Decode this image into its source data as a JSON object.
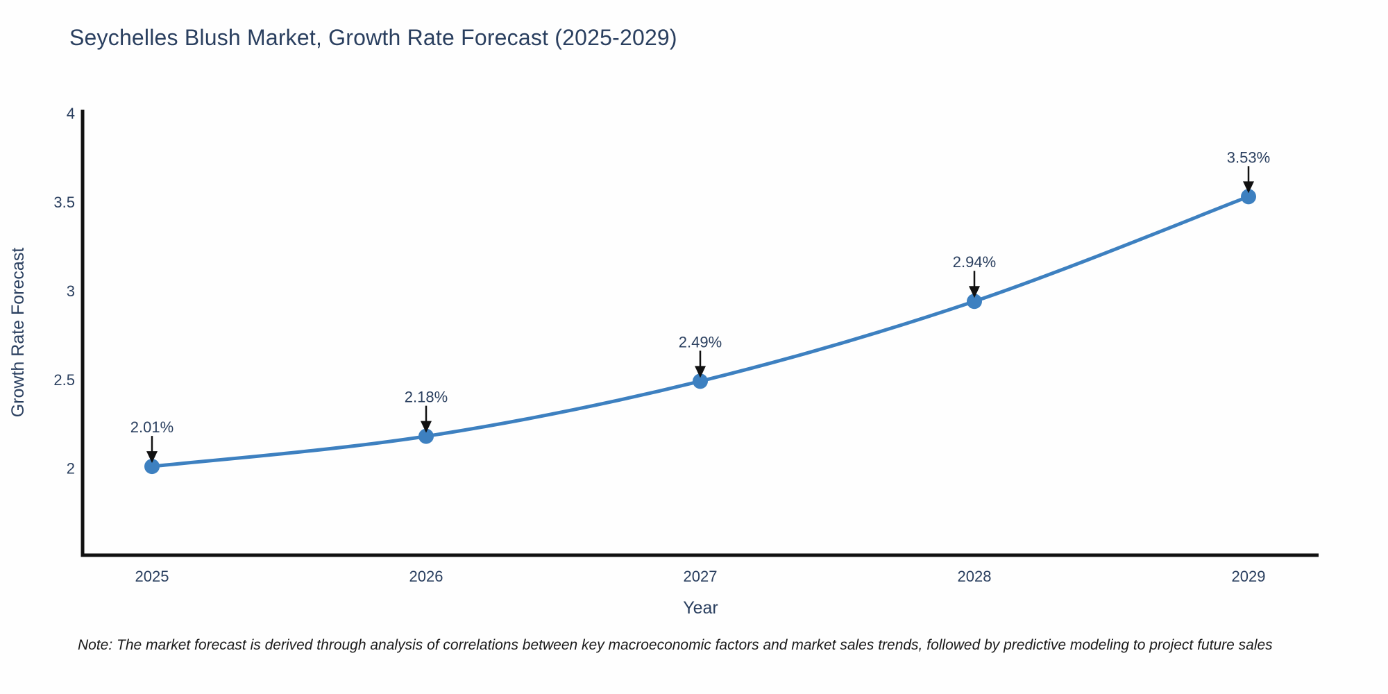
{
  "chart": {
    "background": "#fefefe"
  },
  "note": {
    "text": "Note: The market forecast is derived through analysis of correlations between key macroeconomic factors and market sales trends, followed by predictive modeling to project future sales"
  },
  "chart_data": {
    "type": "line",
    "title": "Seychelles Blush Market, Growth Rate Forecast (2025-2029)",
    "xlabel": "Year",
    "ylabel": "Growth Rate Forecast",
    "categories": [
      "2025",
      "2026",
      "2027",
      "2028",
      "2029"
    ],
    "series": [
      {
        "name": "Growth Rate Forecast",
        "values": [
          2.01,
          2.18,
          2.49,
          2.94,
          3.53
        ]
      }
    ],
    "data_labels": [
      "2.01%",
      "2.18%",
      "2.49%",
      "2.94%",
      "3.53%"
    ],
    "yticks": [
      "2",
      "2.5",
      "3",
      "3.5",
      "4"
    ],
    "ytick_values": [
      2,
      2.5,
      3,
      3.5,
      4
    ],
    "ylim": [
      1.51,
      4.02
    ],
    "grid": false,
    "legend": false,
    "line_shape": "spline",
    "marker": "circle",
    "annotations_with_arrows": true,
    "colors": {
      "line": "#3d80c0",
      "marker": "#3d80c0",
      "axis": "#111111",
      "text": "#2a3f5f",
      "arrow": "#111111"
    }
  }
}
